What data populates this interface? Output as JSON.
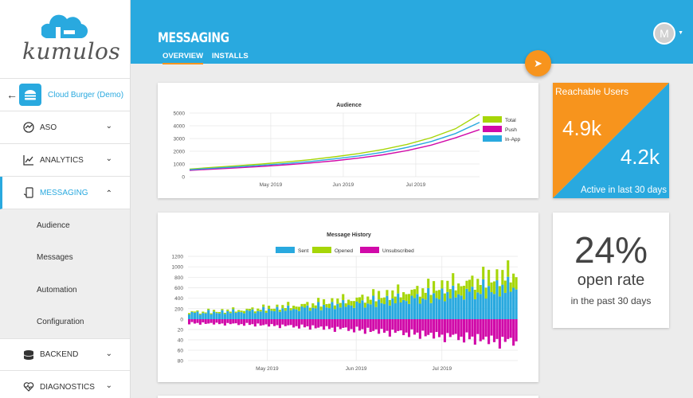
{
  "logo": {
    "text": "kumulos"
  },
  "app": {
    "back_icon": "arrow-left-icon",
    "name": "Cloud Burger (Demo)"
  },
  "nav": {
    "items": [
      {
        "label": "ASO",
        "icon": "aso-icon"
      },
      {
        "label": "ANALYTICS",
        "icon": "analytics-icon"
      },
      {
        "label": "MESSAGING",
        "icon": "messaging-icon"
      }
    ],
    "sub_items": [
      "Audience",
      "Messages",
      "Automation",
      "Configuration"
    ],
    "bottom_items": [
      {
        "label": "BACKEND",
        "icon": "database-icon"
      },
      {
        "label": "DIAGNOSTICS",
        "icon": "heartbeat-icon"
      }
    ]
  },
  "header": {
    "title": "MESSAGING",
    "tabs": [
      "OVERVIEW",
      "INSTALLS"
    ],
    "avatar_letter": "M"
  },
  "colors": {
    "brand": "#29a9df",
    "accent": "#f7941d",
    "total": "#a6d608",
    "push": "#d10aa9",
    "inapp": "#29a9df"
  },
  "reach_card": {
    "title": "Reachable Users",
    "total": "4.9k",
    "active": "4.2k",
    "subtitle": "Active in last 30 days"
  },
  "open_card": {
    "percent": "24%",
    "label": "open rate",
    "subtitle": "in the past 30 days"
  },
  "chart_data": [
    {
      "type": "line",
      "title": "Audience",
      "x_ticks": [
        "May 2019",
        "Jun 2019",
        "Jul 2019"
      ],
      "y_ticks": [
        "0",
        "1000",
        "2000",
        "3000",
        "4000",
        "5000"
      ],
      "ylim": [
        0,
        5000
      ],
      "legend_position": "right",
      "x": [
        0,
        10,
        20,
        30,
        40,
        50,
        60,
        70,
        80,
        90,
        100,
        110,
        120
      ],
      "series": [
        {
          "name": "Total",
          "color": "#a6d608",
          "values": [
            600,
            740,
            860,
            1000,
            1160,
            1340,
            1560,
            1820,
            2140,
            2540,
            3060,
            3760,
            4900
          ]
        },
        {
          "name": "Push",
          "color": "#d10aa9",
          "values": [
            500,
            600,
            700,
            810,
            940,
            1080,
            1250,
            1460,
            1720,
            2050,
            2480,
            3050,
            3700
          ]
        },
        {
          "name": "In-App",
          "color": "#29a9df",
          "values": [
            550,
            670,
            780,
            900,
            1040,
            1200,
            1400,
            1630,
            1920,
            2300,
            2760,
            3390,
            4270
          ]
        }
      ]
    },
    {
      "type": "bar",
      "title": "Message History",
      "legend_position": "top",
      "x_ticks": [
        "May 2019",
        "Jun 2019",
        "Jul 2019"
      ],
      "y_ticks_upper": [
        "1200",
        "1000",
        "800",
        "600",
        "400",
        "200",
        "0"
      ],
      "y_ticks_lower": [
        "20",
        "40",
        "60",
        "80"
      ],
      "ylim_upper": [
        0,
        1200
      ],
      "ylim_lower": [
        0,
        80
      ],
      "series_names": [
        "Sent",
        "Opened",
        "Unsubscribed"
      ],
      "series_colors": [
        "#29a9df",
        "#a6d608",
        "#d10aa9"
      ],
      "points": 120,
      "sent_start": 120,
      "sent_end": 620,
      "opened_start": 20,
      "opened_end": 260,
      "unsub_start": 8,
      "unsub_end": 45,
      "variation": [
        0.82,
        1.15,
        0.95,
        1.25,
        0.7,
        1.05,
        0.9,
        1.3,
        0.75,
        1.1,
        1.0,
        0.85,
        1.2,
        0.78,
        1.08,
        0.92,
        1.35,
        0.8,
        1.02,
        0.88
      ]
    }
  ]
}
